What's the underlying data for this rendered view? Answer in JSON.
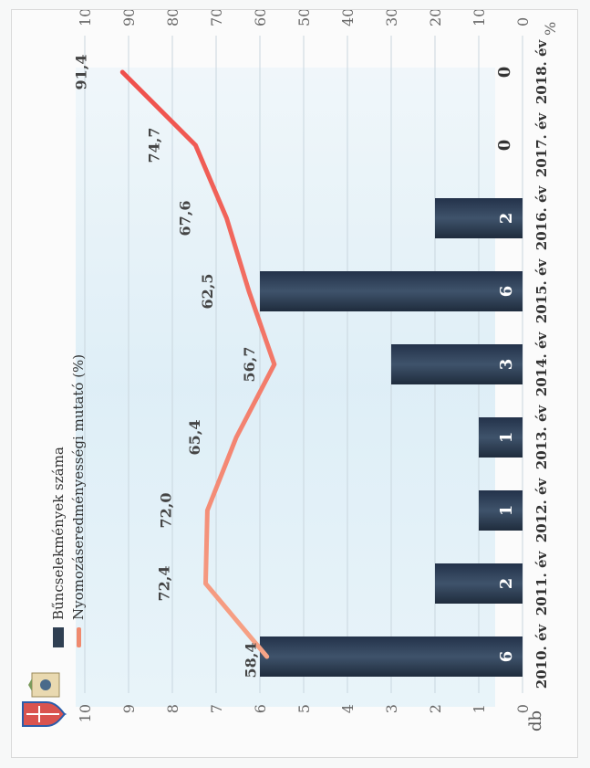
{
  "chart_data": {
    "type": "bar",
    "categories": [
      "2010. év",
      "2011. év",
      "2012. év",
      "2013. év",
      "2014. év",
      "2015. év",
      "2016. év",
      "2017. év",
      "2018. év"
    ],
    "series": [
      {
        "name": "Bűncselekmények száma",
        "type": "bar",
        "axis": "left",
        "color": "#2f3f52",
        "values": [
          6,
          2,
          1,
          1,
          3,
          6,
          2,
          0,
          0
        ]
      },
      {
        "name": "Nyomozáseredményességi mutató (%)",
        "type": "line",
        "axis": "right",
        "color": "#f06a5e",
        "values": [
          58.4,
          72.4,
          72.0,
          65.4,
          56.7,
          62.5,
          67.6,
          74.7,
          91.4
        ]
      }
    ],
    "bar_labels": [
      "6",
      "2",
      "1",
      "1",
      "3",
      "6",
      "2",
      "0",
      "0"
    ],
    "line_labels": [
      "58,4",
      "72,4",
      "72,0",
      "65,4",
      "56,7",
      "62,5",
      "67,6",
      "74,7",
      "91,4"
    ],
    "left_axis": {
      "label": "db",
      "ticks": [
        "0",
        "1",
        "2",
        "3",
        "4",
        "5",
        "6",
        "7",
        "8",
        "9",
        "10"
      ],
      "ylim": [
        0,
        10
      ]
    },
    "right_axis": {
      "label": "%",
      "ticks": [
        "0",
        "10",
        "20",
        "30",
        "40",
        "50",
        "60",
        "70",
        "80",
        "90",
        "100"
      ],
      "ylim": [
        0,
        100
      ]
    },
    "legend_position": "top-left",
    "orientation": "rotated-90-ccw"
  }
}
